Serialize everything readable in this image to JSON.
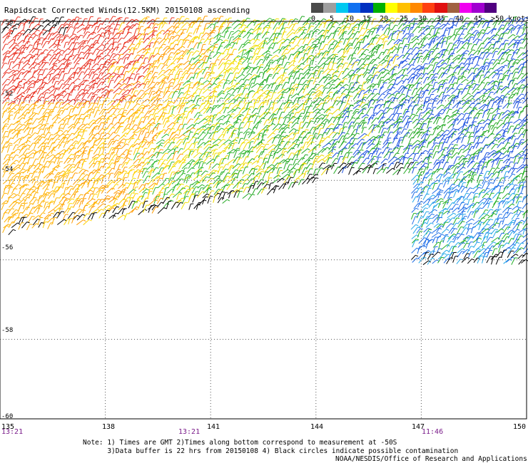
{
  "title": "Rapidscat Corrected Winds(12.5KM) 20150108 ascending",
  "legend": {
    "labels": [
      "0",
      "5",
      "10",
      "15",
      "20",
      "25",
      "30",
      "35",
      "40",
      "45",
      ">50 knots"
    ],
    "colors": [
      "#4a4a4a",
      "#9e9e9e",
      "#00c8f0",
      "#1070f0",
      "#0030c0",
      "#00b000",
      "#ffff00",
      "#ffc000",
      "#ff8800",
      "#ff4010",
      "#e01010",
      "#a06040",
      "#f000f0",
      "#a000d0",
      "#500080"
    ]
  },
  "axes": {
    "lat_labels": [
      "-50",
      "-52",
      "-54",
      "-56",
      "-58",
      "-60"
    ],
    "lon_labels": [
      "135",
      "138",
      "141",
      "144",
      "147",
      "150"
    ],
    "time_labels": [
      "13:21",
      "13:21",
      "11:46"
    ]
  },
  "notes": "Note: 1) Times are GMT 2)Times along bottom correspond to measurement at -50S\n      3)Data buffer is 22 hrs from 20150108 4) Black circles indicate possible contamination",
  "credit": "NOAA/NESDIS/Office of Research and Applications"
}
